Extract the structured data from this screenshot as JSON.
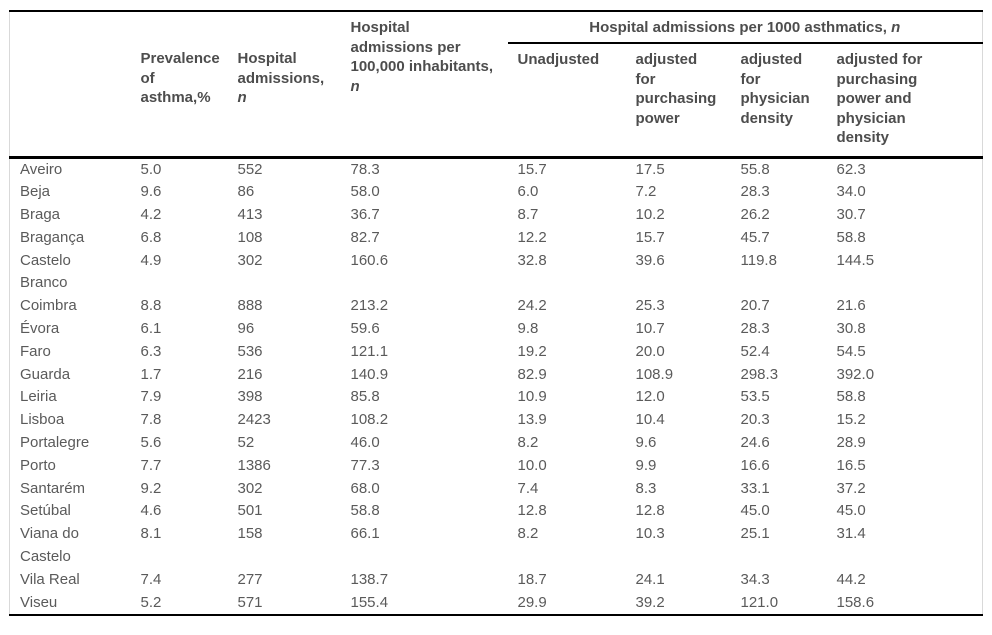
{
  "colors": {
    "rule_black": "#000000",
    "frame_gray": "#d9d9d9",
    "header_text_gray": "#4d4d4d",
    "body_text_gray": "#5a5a5a",
    "background": "#ffffff"
  },
  "table": {
    "group_header": {
      "label": "Hospital admissions per 1000 asthmatics, ",
      "italic_suffix": "n"
    },
    "columns": [
      {
        "id": "district",
        "label": "",
        "italic_suffix": ""
      },
      {
        "id": "prevalence",
        "label": "Prevalence of asthma,%",
        "italic_suffix": ""
      },
      {
        "id": "admissions",
        "label": "Hospital admissions, ",
        "italic_suffix": "n"
      },
      {
        "id": "per_100000",
        "label": "Hospital admissions per 100,000 inhabitants, ",
        "italic_suffix": "n"
      },
      {
        "id": "unadjusted",
        "label": "Unadjusted",
        "italic_suffix": ""
      },
      {
        "id": "adj_purchasing",
        "label": "adjusted for purchasing power",
        "italic_suffix": ""
      },
      {
        "id": "adj_physician",
        "label": "adjusted for physician density",
        "italic_suffix": ""
      },
      {
        "id": "adj_both",
        "label": "adjusted for purchasing power and physician density",
        "italic_suffix": ""
      }
    ],
    "rows": [
      {
        "district": "Aveiro",
        "values": [
          "5.0",
          "552",
          "78.3",
          "15.7",
          "17.5",
          "55.8",
          "62.3"
        ]
      },
      {
        "district": "Beja",
        "values": [
          "9.6",
          "86",
          "58.0",
          "6.0",
          "7.2",
          "28.3",
          "34.0"
        ]
      },
      {
        "district": "Braga",
        "values": [
          "4.2",
          "413",
          "36.7",
          "8.7",
          "10.2",
          "26.2",
          "30.7"
        ]
      },
      {
        "district": "Bragança",
        "values": [
          "6.8",
          "108",
          "82.7",
          "12.2",
          "15.7",
          "45.7",
          "58.8"
        ]
      },
      {
        "district": "Castelo Branco",
        "values": [
          "4.9",
          "302",
          "160.6",
          "32.8",
          "39.6",
          "119.8",
          "144.5"
        ]
      },
      {
        "district": "Coimbra",
        "values": [
          "8.8",
          "888",
          "213.2",
          "24.2",
          "25.3",
          "20.7",
          "21.6"
        ]
      },
      {
        "district": "Évora",
        "values": [
          "6.1",
          "96",
          "59.6",
          "9.8",
          "10.7",
          "28.3",
          "30.8"
        ]
      },
      {
        "district": "Faro",
        "values": [
          "6.3",
          "536",
          "121.1",
          "19.2",
          "20.0",
          "52.4",
          "54.5"
        ]
      },
      {
        "district": "Guarda",
        "values": [
          "1.7",
          "216",
          "140.9",
          "82.9",
          "108.9",
          "298.3",
          "392.0"
        ]
      },
      {
        "district": "Leiria",
        "values": [
          "7.9",
          "398",
          "85.8",
          "10.9",
          "12.0",
          "53.5",
          "58.8"
        ]
      },
      {
        "district": "Lisboa",
        "values": [
          "7.8",
          "2423",
          "108.2",
          "13.9",
          "10.4",
          "20.3",
          "15.2"
        ]
      },
      {
        "district": "Portalegre",
        "values": [
          "5.6",
          "52",
          "46.0",
          "8.2",
          "9.6",
          "24.6",
          "28.9"
        ]
      },
      {
        "district": "Porto",
        "values": [
          "7.7",
          "1386",
          "77.3",
          "10.0",
          "9.9",
          "16.6",
          "16.5"
        ]
      },
      {
        "district": "Santarém",
        "values": [
          "9.2",
          "302",
          "68.0",
          "7.4",
          "8.3",
          "33.1",
          "37.2"
        ]
      },
      {
        "district": "Setúbal",
        "values": [
          "4.6",
          "501",
          "58.8",
          "12.8",
          "12.8",
          "45.0",
          "45.0"
        ]
      },
      {
        "district": "Viana do Castelo",
        "values": [
          "8.1",
          "158",
          "66.1",
          "8.2",
          "10.3",
          "25.1",
          "31.4"
        ]
      },
      {
        "district": "Vila Real",
        "values": [
          "7.4",
          "277",
          "138.7",
          "18.7",
          "24.1",
          "34.3",
          "44.2"
        ]
      },
      {
        "district": "Viseu",
        "values": [
          "5.2",
          "571",
          "155.4",
          "29.9",
          "39.2",
          "121.0",
          "158.6"
        ]
      }
    ]
  }
}
